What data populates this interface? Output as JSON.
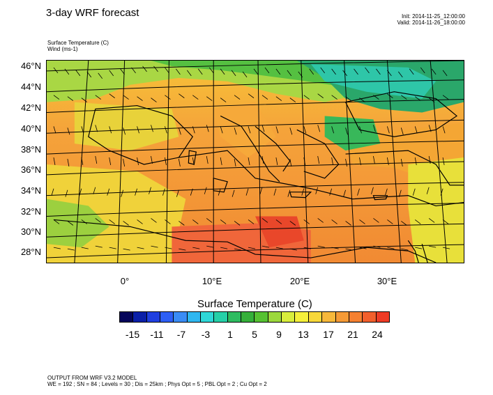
{
  "title": "3-day WRF forecast",
  "init_time": "Init: 2014-11-25_12:00:00",
  "valid_time": "Valid: 2014-11-26_18:00:00",
  "field_label": "Surface Temperature   (C)",
  "wind_label": "Wind   (ms-1)",
  "lat_labels": [
    "46°N",
    "44°N",
    "42°N",
    "40°N",
    "38°N",
    "36°N",
    "34°N",
    "32°N",
    "30°N",
    "28°N"
  ],
  "lon_labels": [
    "0°",
    "10°E",
    "20°E",
    "30°E"
  ],
  "colorbar": {
    "title": "Surface Temperature  (C)",
    "labels": [
      "-15",
      "-11",
      "-7",
      "-3",
      "1",
      "5",
      "9",
      "13",
      "17",
      "21",
      "24"
    ],
    "colors": [
      "#05055a",
      "#0a1fa8",
      "#1f3fe0",
      "#2e5ff5",
      "#3a8cf5",
      "#2fb7f0",
      "#2fd8d8",
      "#25d0a8",
      "#2ebc60",
      "#35b03a",
      "#56c232",
      "#9cd83c",
      "#d8ee3c",
      "#f5f03a",
      "#f8d83a",
      "#f7b83a",
      "#f59a36",
      "#f58030",
      "#f25f2c",
      "#ee3b25"
    ]
  },
  "footer_line1": "OUTPUT FROM WRF V3.2 MODEL",
  "footer_line2": "WE = 192 ; SN = 84 ; Levels = 30 ; Dis = 25km ; Phys Opt = 5 ; PBL Opt = 2 ; Cu Opt = 2"
}
